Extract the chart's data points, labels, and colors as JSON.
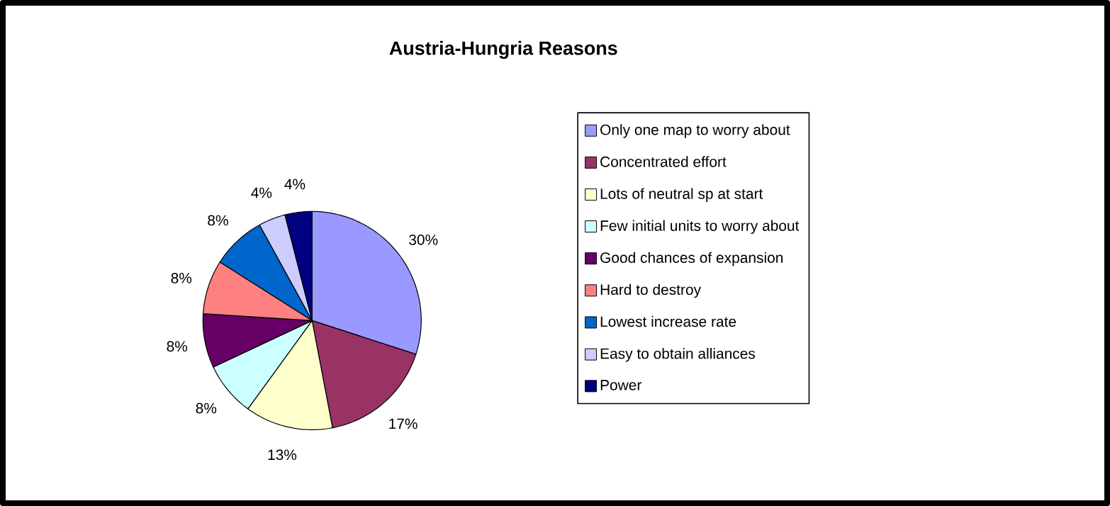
{
  "chart_data": {
    "type": "pie",
    "title": "Austria-Hungria Reasons",
    "categories": [
      "Only one map to worry about",
      "Concentrated effort",
      "Lots of neutral sp at start",
      "Few initial units to worry about",
      "Good chances of expansion",
      "Hard to destroy",
      "Lowest increase rate",
      "Easy to obtain alliances",
      "Power"
    ],
    "values": [
      30,
      17,
      13,
      8,
      8,
      8,
      8,
      4,
      4
    ],
    "value_labels": [
      "30%",
      "17%",
      "13%",
      "8%",
      "8%",
      "8%",
      "8%",
      "4%",
      "4%"
    ],
    "colors": [
      "#9999ff",
      "#993366",
      "#ffffcc",
      "#ccffff",
      "#660066",
      "#ff8080",
      "#0066cc",
      "#ccccff",
      "#000080"
    ],
    "legend": "right"
  }
}
